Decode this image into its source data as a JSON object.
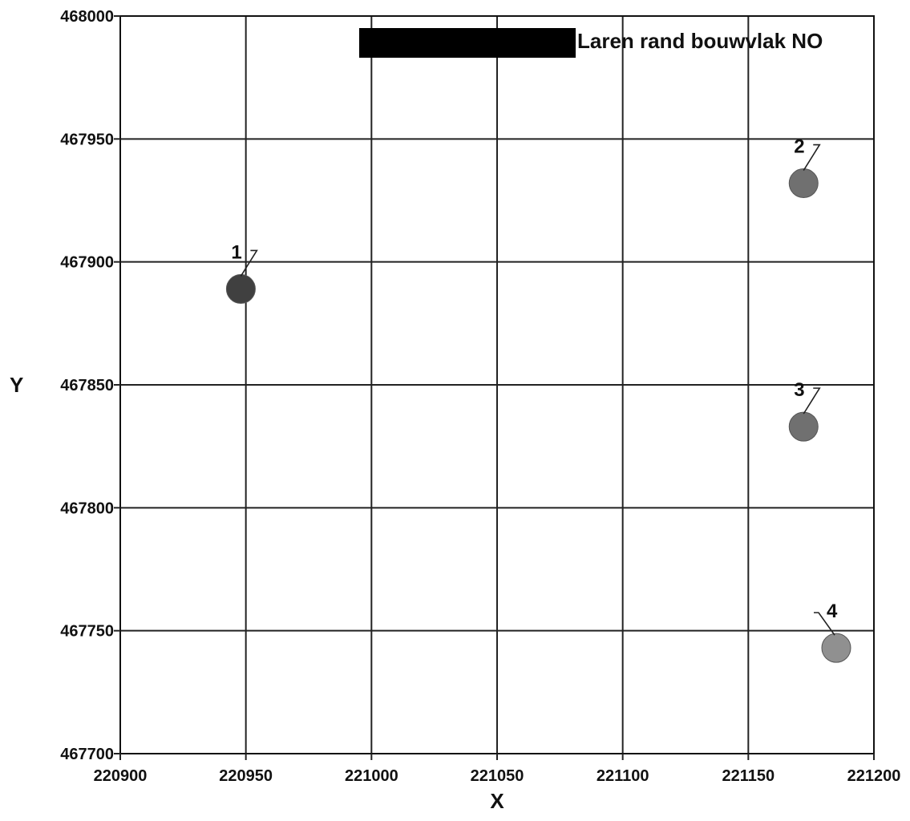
{
  "chart_data": {
    "type": "scatter",
    "title": "",
    "xlabel": "X",
    "ylabel": "Y",
    "xlim": [
      220900,
      221200
    ],
    "ylim": [
      467700,
      468000
    ],
    "x_ticks": [
      220900,
      220950,
      221000,
      221050,
      221100,
      221150,
      221200
    ],
    "y_ticks": [
      467700,
      467750,
      467800,
      467850,
      467900,
      467950,
      468000
    ],
    "grid": true,
    "legend": {
      "placement": "top-right",
      "entries": [
        {
          "label": "Laren rand bouwvlak NO",
          "color": "#000000",
          "redacted_label": true
        }
      ]
    },
    "points": [
      {
        "label": "1",
        "x": 220948,
        "y": 467889,
        "color": "#404040",
        "label_side": "left"
      },
      {
        "label": "2",
        "x": 221172,
        "y": 467932,
        "color": "#707070",
        "label_side": "left"
      },
      {
        "label": "3",
        "x": 221172,
        "y": 467833,
        "color": "#707070",
        "label_side": "left"
      },
      {
        "label": "4",
        "x": 221185,
        "y": 467743,
        "color": "#909090",
        "label_side": "right"
      }
    ]
  }
}
